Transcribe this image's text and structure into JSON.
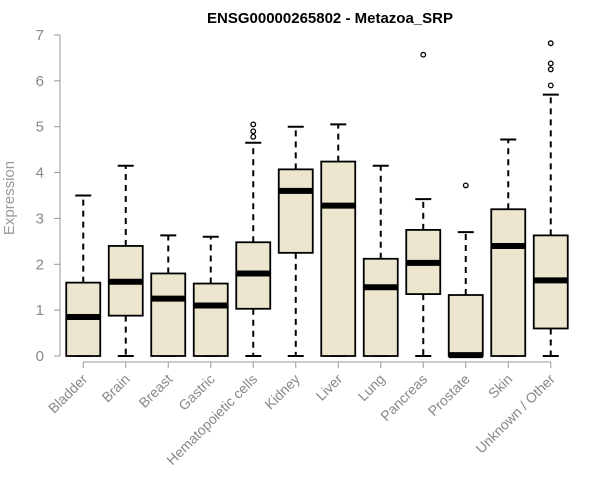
{
  "chart_data": {
    "type": "boxplot",
    "title": "ENSG00000265802 - Metazoa_SRP",
    "xlabel": "",
    "ylabel": "Expression",
    "ylim": [
      0,
      7
    ],
    "yticks": [
      0,
      1,
      2,
      3,
      4,
      5,
      6,
      7
    ],
    "box_fill": "#ede6cf",
    "categories": [
      "Bladder",
      "Brain",
      "Breast",
      "Gastric",
      "Hematopoietic cells",
      "Kidney",
      "Liver",
      "Lung",
      "Pancreas",
      "Prostate",
      "Skin",
      "Unknown / Other"
    ],
    "boxes": [
      {
        "min": 0,
        "q1": 0,
        "median": 0.85,
        "q3": 1.6,
        "max": 3.5,
        "outliers": []
      },
      {
        "min": 0,
        "q1": 0.88,
        "median": 1.62,
        "q3": 2.4,
        "max": 4.15,
        "outliers": []
      },
      {
        "min": 0,
        "q1": 0,
        "median": 1.25,
        "q3": 1.8,
        "max": 2.63,
        "outliers": []
      },
      {
        "min": 0,
        "q1": 0,
        "median": 1.1,
        "q3": 1.58,
        "max": 2.6,
        "outliers": []
      },
      {
        "min": 0,
        "q1": 1.03,
        "median": 1.8,
        "q3": 2.48,
        "max": 4.65,
        "outliers": [
          4.78,
          4.9,
          5.05
        ]
      },
      {
        "min": 0,
        "q1": 2.25,
        "median": 3.6,
        "q3": 4.07,
        "max": 5.0,
        "outliers": []
      },
      {
        "min": 0,
        "q1": 0,
        "median": 3.28,
        "q3": 4.24,
        "max": 5.05,
        "outliers": []
      },
      {
        "min": 0,
        "q1": 0,
        "median": 1.5,
        "q3": 2.12,
        "max": 4.15,
        "outliers": []
      },
      {
        "min": 0,
        "q1": 1.35,
        "median": 2.03,
        "q3": 2.75,
        "max": 3.42,
        "outliers": [
          6.57
        ]
      },
      {
        "min": 0,
        "q1": 0,
        "median": 0.02,
        "q3": 1.33,
        "max": 2.7,
        "outliers": [
          3.72
        ]
      },
      {
        "min": 0,
        "q1": 0,
        "median": 2.4,
        "q3": 3.2,
        "max": 4.72,
        "outliers": []
      },
      {
        "min": 0,
        "q1": 0.6,
        "median": 1.65,
        "q3": 2.63,
        "max": 5.7,
        "outliers": [
          5.9,
          6.25,
          6.38,
          6.82
        ]
      }
    ]
  }
}
